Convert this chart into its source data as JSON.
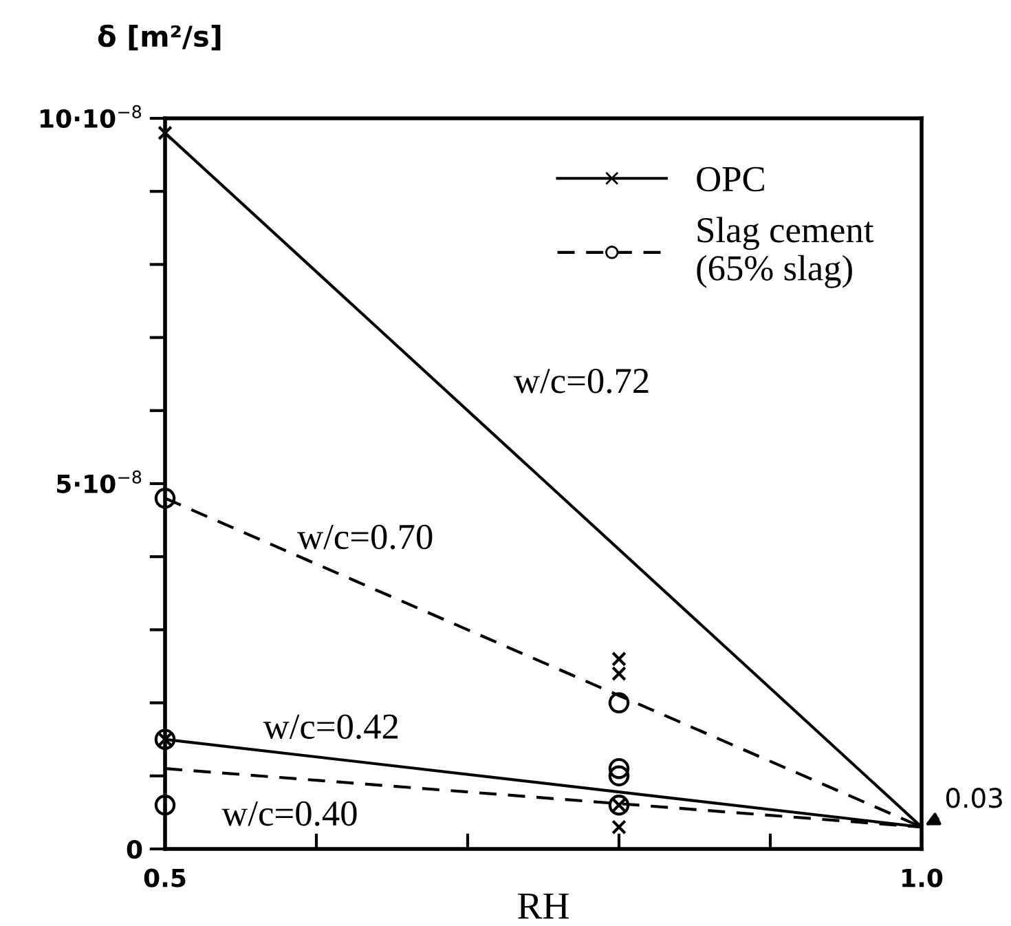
{
  "chart_data": {
    "type": "line",
    "xlabel": "RH",
    "ylabel": "δ [m²/s]",
    "xlim": [
      0.5,
      1.0
    ],
    "ylim": [
      0,
      1e-07
    ],
    "xticks": [
      0.5,
      {
        "value": 0.6,
        "label": null
      },
      {
        "value": 0.7,
        "label": null
      },
      {
        "value": 0.8,
        "label": null
      },
      {
        "value": 0.9,
        "label": null
      },
      {
        "value": 1.0,
        "label": "1.0"
      }
    ],
    "yticks": [
      0,
      {
        "value": 1e-08,
        "label": null
      },
      {
        "value": 2e-08,
        "label": null
      },
      {
        "value": 3e-08,
        "label": null
      },
      {
        "value": 4e-08,
        "label": null
      },
      {
        "value": 5e-08,
        "label": "5·10$^{−8}$"
      },
      {
        "value": 6e-08,
        "label": null
      },
      {
        "value": 7e-08,
        "label": null
      },
      {
        "value": 8e-08,
        "label": null
      },
      {
        "value": 9e-08,
        "label": null
      },
      {
        "value": 1e-07,
        "label": "10·10$^{−8}$"
      }
    ],
    "grid": false,
    "legend": "top right",
    "series": [
      {
        "type": "line",
        "name": "w/c=0.72",
        "color": "#000000",
        "line_style": "solid",
        "marker": "none",
        "x": [
          0.5,
          1.0
        ],
        "values": [
          9.8e-08,
          3e-09
        ]
      },
      {
        "type": "line",
        "name": "w/c=0.70",
        "color": "#000000",
        "line_style": "dashed",
        "marker": "none",
        "x": [
          0.5,
          1.0
        ],
        "values": [
          4.8e-08,
          3e-09
        ]
      },
      {
        "type": "line",
        "name": "w/c=0.42",
        "color": "#000000",
        "line_style": "solid",
        "marker": "none",
        "x": [
          0.5,
          1.0
        ],
        "values": [
          1.5e-08,
          3e-09
        ]
      },
      {
        "type": "line",
        "name": "w/c=0.40",
        "color": "#000000",
        "line_style": "dashed",
        "marker": "none",
        "x": [
          0.5,
          1.0
        ],
        "values": [
          1.1e-08,
          3e-09
        ]
      },
      {
        "type": "scatter",
        "name": "OPC",
        "color": "#000000",
        "line_style": "solid",
        "marker": "cross",
        "x": [
          0.5,
          0.8,
          0.8,
          0.5,
          0.8,
          0.8
        ],
        "values": [
          9.8e-08,
          2.6e-08,
          2.4e-08,
          1.5e-08,
          6e-09,
          3e-09
        ]
      },
      {
        "type": "scatter",
        "name": "Slag cement\n(65% slag)",
        "color": "#000000",
        "line_style": "dashed",
        "marker": "circle",
        "x": [
          0.5,
          0.8,
          0.5,
          0.8,
          0.8,
          0.5,
          0.8
        ],
        "values": [
          4.8e-08,
          2e-08,
          1.5e-08,
          1.1e-08,
          1e-08,
          6e-09,
          6e-09
        ]
      }
    ],
    "annotations": [
      "0.03"
    ]
  }
}
